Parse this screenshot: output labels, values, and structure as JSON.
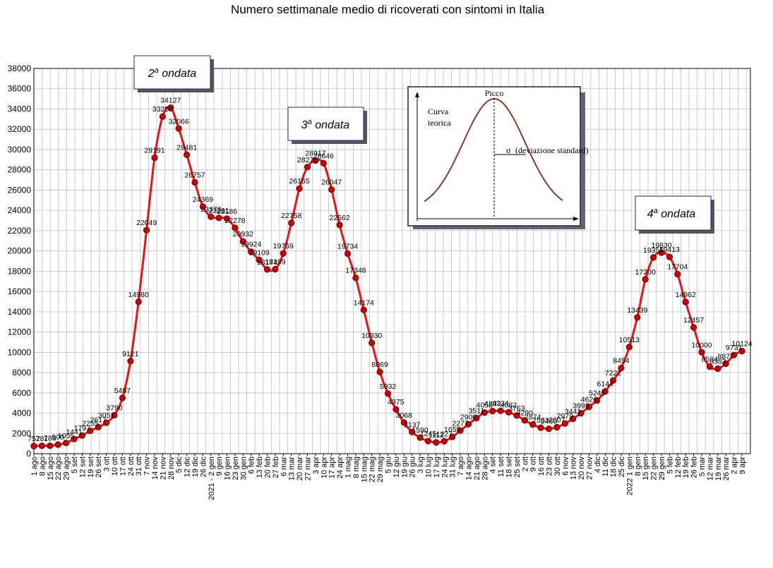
{
  "chart_data": {
    "type": "line",
    "title": "Numero settimanale medio di ricoverati con sintomi in Italia",
    "ylim": [
      0,
      38000
    ],
    "ytick_step": 2000,
    "grid": true,
    "line_color": "#ee1111",
    "marker_color": "#cc0000",
    "x": [
      "1 ago",
      "8 ago",
      "15 ago",
      "22 ago",
      "29 ago",
      "5 set",
      "12 set",
      "19 set",
      "26 set",
      "3 ott",
      "10 ott",
      "17 ott",
      "24 ott",
      "31 ott",
      "7 nov",
      "14 nov",
      "21 nov",
      "28 nov",
      "5 dic",
      "12 dic",
      "19 dic",
      "26 dic",
      "2021 - 2 gen",
      "9 gen",
      "16 gen",
      "23 gen",
      "30 gen",
      "6 feb",
      "13 feb",
      "20 feb",
      "27 feb",
      "6 mar",
      "13 mar",
      "20 mar",
      "27 mar",
      "3 apr",
      "10 apr",
      "17 apr",
      "24 apr",
      "1 mag",
      "8 mag",
      "15 mag",
      "22 mag",
      "29 mag",
      "5 giu",
      "12 giu",
      "19 giu",
      "26 giu",
      "3 lug",
      "10 lug",
      "17 lug",
      "24 lug",
      "31 lug",
      "7 ago",
      "14 ago",
      "21 ago",
      "28 ago",
      "4 set",
      "11 set",
      "18 set",
      "25 set",
      "2 ott",
      "9 ott",
      "16 ott",
      "23 ott",
      "30 ott",
      "6 nov",
      "13 nov",
      "20 nov",
      "27 nov",
      "4 dic",
      "11 dic",
      "18 dic",
      "25 dic",
      "2022 1 gen",
      "8 gen",
      "15 gen",
      "22 gen",
      "29 gen",
      "5 feb",
      "12 feb",
      "19 feb",
      "26 feb",
      "5 mar",
      "12 mar",
      "19 mar",
      "26 mar",
      "2 apr",
      "9 apr"
    ],
    "values": [
      752,
      781,
      786,
      900,
      1055,
      1441,
      1797,
      2255,
      2617,
      3051,
      3790,
      5497,
      9121,
      14980,
      22049,
      29191,
      33255,
      34127,
      32066,
      29481,
      26757,
      24369,
      23373,
      23261,
      23186,
      22278,
      20932,
      19924,
      19109,
      18174,
      18199,
      19759,
      22758,
      26155,
      28270,
      28917,
      28646,
      26047,
      22562,
      19734,
      17348,
      14174,
      10930,
      8069,
      5932,
      4375,
      3068,
      2137,
      1590,
      1245,
      1112,
      1227,
      1655,
      2277,
      2900,
      3511,
      4055,
      4203,
      4234,
      4082,
      3763,
      3290,
      2874,
      2563,
      2460,
      2607,
      2979,
      3441,
      3995,
      4620,
      5245,
      6144,
      7222,
      8454,
      10513,
      13439,
      17200,
      19356,
      19830,
      19413,
      17704,
      14962,
      12457,
      10000,
      8584,
      8383,
      8877,
      9731,
      10124
    ],
    "labels": [
      "752",
      "781",
      "786",
      "900",
      "1055",
      "1441",
      "1797",
      "2255",
      "2617",
      "3051",
      "3790",
      "5497",
      "9121",
      "14980",
      "22049",
      "29191",
      "33255",
      "34127",
      "32066",
      "29481",
      "26757",
      "24369",
      "23373",
      "23261",
      "23186",
      "22278",
      "20932",
      "19924",
      "19109",
      "18174",
      "18199",
      "19759",
      "22758",
      "26155",
      "28270",
      "28917",
      "28646",
      "26047",
      "22562",
      "19734",
      "17348",
      "14174",
      "10930",
      "8069",
      "5932",
      "4375",
      "3068",
      "2137",
      "1590",
      "1245",
      "1112",
      "1227",
      "1655",
      "2277",
      "2900",
      "3511",
      "4055",
      "4203",
      "4234",
      "4082",
      "3763",
      "3290",
      "2874",
      "2563",
      "2460",
      "2607",
      "2979",
      "3441",
      "3995",
      "4620",
      "5245",
      "6144",
      "7222",
      "8454",
      "10513",
      "13439",
      "17200",
      "19356",
      "19830",
      "19413",
      "17704",
      "14962",
      "12457",
      "10000",
      "8584",
      "8383",
      "8877",
      "9731",
      "10124"
    ]
  },
  "annotations": {
    "wave2": {
      "num": "2",
      "sup": "a",
      "text": " ondata"
    },
    "wave3": {
      "num": "3",
      "sup": "a",
      "text": " ondata"
    },
    "wave4": {
      "num": "4",
      "sup": "a",
      "text": " ondata"
    }
  },
  "inset": {
    "curve_label_line1": "Curva",
    "curve_label_line2": "teorica",
    "peak_label": "Picco",
    "sigma_label": "σ",
    "sigma_text": "(deviazione standard)",
    "curve_color": "#8b3a2a"
  }
}
